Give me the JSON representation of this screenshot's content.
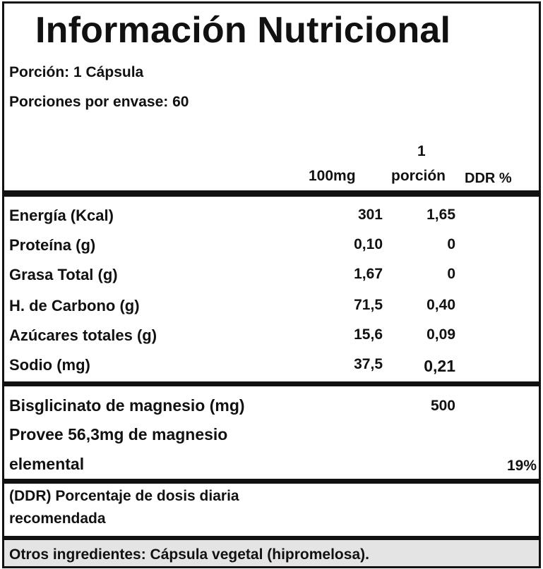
{
  "title": "Información Nutricional",
  "portion": "Porción: 1 Cápsula",
  "servings": "Porciones por envase: 60",
  "columns": {
    "per100": "100mg",
    "per_portion_top": "1",
    "per_portion_bottom": "porción",
    "ddr": "DDR %"
  },
  "rows": [
    {
      "label": "Energía (Kcal)",
      "per100": "301",
      "portion": "1,65"
    },
    {
      "label": "Proteína (g)",
      "per100": "0,10",
      "portion": "0"
    },
    {
      "label": "Grasa Total (g)",
      "per100": "1,67",
      "portion": "0"
    },
    {
      "label": "H. de Carbono (g)",
      "per100": "71,5",
      "portion": "0,40"
    },
    {
      "label": "Azúcares totales (g)",
      "per100": "15,6",
      "portion": "0,09"
    },
    {
      "label": "Sodio (mg)",
      "per100": "37,5",
      "portion": "0,21"
    }
  ],
  "magnesium": {
    "label": "Bisglicinato de magnesio (mg)",
    "portion": "500",
    "line2": "Provee 56,3mg de magnesio",
    "line3": "elemental",
    "ddr": "19%"
  },
  "ddr_note": {
    "line1": "(DDR) Porcentaje de dosis diaria",
    "line2": "recomendada"
  },
  "other_ingredients": "Otros ingredientes: Cápsula vegetal (hipromelosa)."
}
